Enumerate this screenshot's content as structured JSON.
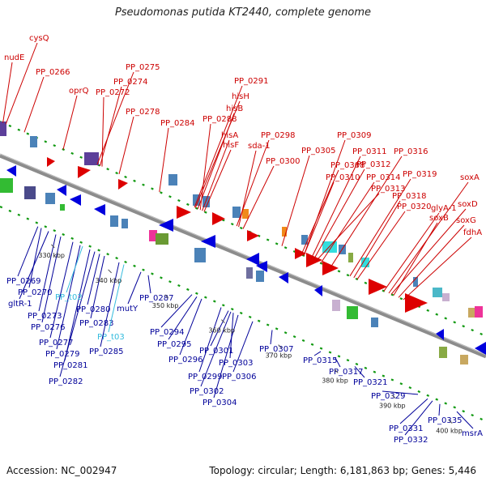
{
  "title": "Pseudomonas putida KT2440, complete genome",
  "footer": {
    "accession": "Accession: NC_002947",
    "topology": "Topology: circular; Length: 6,181,863 bp; Genes: 5,446"
  },
  "colors": {
    "forward_label": "#cc0000",
    "reverse_label": "#000099",
    "highlight_label": "#33bbdd",
    "backbone": "#8c8c8c",
    "tick_dot": "#119911"
  },
  "ticks": [
    {
      "label": "330 kbp",
      "pos": 0.109
    },
    {
      "label": "340 kbp",
      "pos": 0.226
    },
    {
      "label": "350 kbp",
      "pos": 0.343
    },
    {
      "label": "360 kbp",
      "pos": 0.459
    },
    {
      "label": "370 kbp",
      "pos": 0.576
    },
    {
      "label": "380 kbp",
      "pos": 0.692
    },
    {
      "label": "390 kbp",
      "pos": 0.81
    },
    {
      "label": "400 kbp",
      "pos": 0.927
    }
  ],
  "top_labels": [
    {
      "text": "cysQ",
      "pos": 0.012
    },
    {
      "text": "nudE",
      "pos": 0.006
    },
    {
      "text": "PP_0266",
      "pos": 0.05
    },
    {
      "text": "oprQ",
      "pos": 0.13
    },
    {
      "text": "PP_0275",
      "pos": 0.2
    },
    {
      "text": "PP_0274",
      "pos": 0.206
    },
    {
      "text": "PP_0272",
      "pos": 0.21
    },
    {
      "text": "PP_0278",
      "pos": 0.245
    },
    {
      "text": "PP_0284",
      "pos": 0.328
    },
    {
      "text": "PP_0291",
      "pos": 0.4
    },
    {
      "text": "hisH",
      "pos": 0.402
    },
    {
      "text": "hisB",
      "pos": 0.407
    },
    {
      "text": "PP_0288",
      "pos": 0.412
    },
    {
      "text": "hisA",
      "pos": 0.416
    },
    {
      "text": "hisF",
      "pos": 0.42
    },
    {
      "text": "PP_0298",
      "pos": 0.487
    },
    {
      "text": "sda-1",
      "pos": 0.491
    },
    {
      "text": "PP_0300",
      "pos": 0.5
    },
    {
      "text": "PP_0305",
      "pos": 0.58
    },
    {
      "text": "PP_0309",
      "pos": 0.625
    },
    {
      "text": "PP_0308",
      "pos": 0.62
    },
    {
      "text": "PP_0311",
      "pos": 0.64
    },
    {
      "text": "PP_0310",
      "pos": 0.625
    },
    {
      "text": "PP_0312",
      "pos": 0.645
    },
    {
      "text": "PP_0313",
      "pos": 0.65
    },
    {
      "text": "PP_0314",
      "pos": 0.66
    },
    {
      "text": "PP_0316",
      "pos": 0.68
    },
    {
      "text": "PP_0319",
      "pos": 0.72
    },
    {
      "text": "PP_0318",
      "pos": 0.728
    },
    {
      "text": "PP_0320",
      "pos": 0.735
    },
    {
      "text": "soxA",
      "pos": 0.8
    },
    {
      "text": "glyA-1",
      "pos": 0.79
    },
    {
      "text": "soxD",
      "pos": 0.805
    },
    {
      "text": "soxB",
      "pos": 0.81
    },
    {
      "text": "soxG",
      "pos": 0.82
    },
    {
      "text": "fdhA",
      "pos": 0.83
    }
  ],
  "bottom_labels": [
    {
      "text": "PP_0269",
      "pos": 0.078
    },
    {
      "text": "PP_0270",
      "pos": 0.085
    },
    {
      "text": "gltR-1",
      "pos": 0.1
    },
    {
      "text": "PP_0273",
      "pos": 0.115
    },
    {
      "text": "PP_0276",
      "pos": 0.125
    },
    {
      "text": "PP_0277",
      "pos": 0.15
    },
    {
      "text": "PP_0279",
      "pos": 0.165
    },
    {
      "text": "PP_0281",
      "pos": 0.185
    },
    {
      "text": "PP_0282",
      "pos": 0.195
    },
    {
      "text": "PP_t02",
      "pos": 0.17,
      "highlight": true
    },
    {
      "text": "PP_0280",
      "pos": 0.205
    },
    {
      "text": "PP_0283",
      "pos": 0.215
    },
    {
      "text": "PP_t03",
      "pos": 0.255,
      "highlight": true
    },
    {
      "text": "PP_0285",
      "pos": 0.245
    },
    {
      "text": "mutY",
      "pos": 0.29
    },
    {
      "text": "PP_0287",
      "pos": 0.305
    },
    {
      "text": "PP_0294",
      "pos": 0.395
    },
    {
      "text": "PP_0295",
      "pos": 0.405
    },
    {
      "text": "PP_0296",
      "pos": 0.415
    },
    {
      "text": "PP_0299",
      "pos": 0.455
    },
    {
      "text": "PP_0301",
      "pos": 0.47
    },
    {
      "text": "PP_0303",
      "pos": 0.48
    },
    {
      "text": "PP_0302",
      "pos": 0.475
    },
    {
      "text": "PP_0304",
      "pos": 0.49
    },
    {
      "text": "PP_0306",
      "pos": 0.52
    },
    {
      "text": "PP_0307",
      "pos": 0.56
    },
    {
      "text": "PP_0315",
      "pos": 0.66
    },
    {
      "text": "PP_0317",
      "pos": 0.69
    },
    {
      "text": "PP_0321",
      "pos": 0.73
    },
    {
      "text": "PP_0329",
      "pos": 0.86
    },
    {
      "text": "PP_0331",
      "pos": 0.88
    },
    {
      "text": "PP_0332",
      "pos": 0.89
    },
    {
      "text": "PP_0335",
      "pos": 0.905
    },
    {
      "text": "msrA",
      "pos": 0.94
    }
  ]
}
